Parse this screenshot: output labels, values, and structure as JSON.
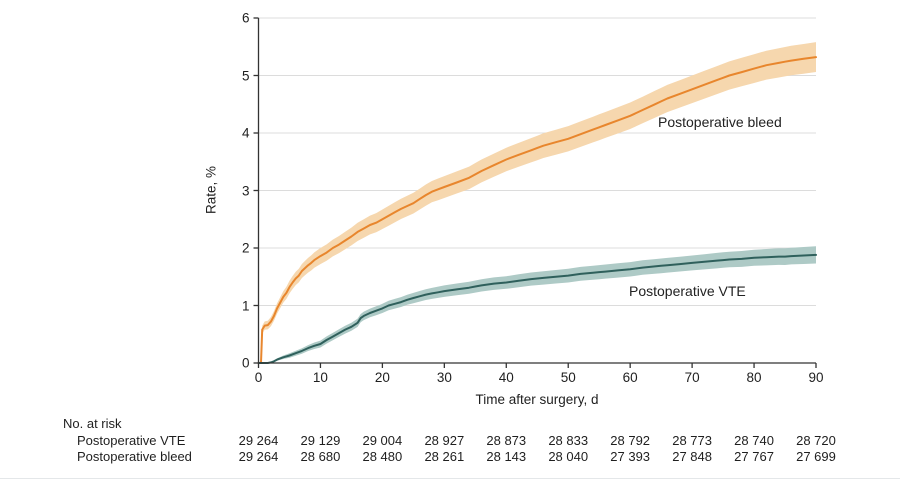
{
  "figure": {
    "y_axis_label": "Rate, %",
    "x_axis_label": "Time after surgery, d",
    "curve_label_bleed": "Postoperative bleed",
    "curve_label_vte": "Postoperative VTE"
  },
  "colors": {
    "bleed_line": "#e8862d",
    "bleed_band": "#f6d7ae",
    "vte_line": "#2f605c",
    "vte_band": "#aecac6",
    "grid": "#dcdcdc",
    "axis": "#333333",
    "text": "#1f1f1f"
  },
  "chart_data": {
    "type": "line",
    "title": "",
    "xlabel": "Time after surgery, d",
    "ylabel": "Rate, %",
    "xlim": [
      0,
      90
    ],
    "ylim": [
      0,
      6
    ],
    "xticks": [
      0,
      10,
      20,
      30,
      40,
      50,
      60,
      70,
      80,
      90
    ],
    "yticks": [
      0,
      1,
      2,
      3,
      4,
      5,
      6
    ],
    "grid": true,
    "legend_position": "inline-annotations",
    "series": [
      {
        "name": "Postoperative bleed",
        "x": [
          0,
          0.4,
          0.6,
          1,
          1.5,
          2,
          2.5,
          3,
          3.5,
          4,
          4.5,
          5,
          5.5,
          6,
          6.5,
          7,
          7.5,
          8,
          8.5,
          9,
          10,
          11,
          12,
          13,
          14,
          15,
          16,
          17,
          18,
          19,
          20,
          21,
          22,
          23,
          24,
          25,
          26,
          27,
          28,
          29,
          30,
          32,
          34,
          35,
          36,
          38,
          40,
          42,
          44,
          45,
          46,
          48,
          50,
          52,
          54,
          55,
          56,
          58,
          60,
          62,
          64,
          65,
          66,
          68,
          70,
          72,
          74,
          75,
          76,
          78,
          80,
          82,
          84,
          85,
          86,
          88,
          90
        ],
        "y": [
          0,
          0,
          0.58,
          0.65,
          0.66,
          0.72,
          0.82,
          0.95,
          1.05,
          1.15,
          1.22,
          1.32,
          1.4,
          1.47,
          1.52,
          1.6,
          1.65,
          1.7,
          1.74,
          1.79,
          1.86,
          1.92,
          2.0,
          2.06,
          2.13,
          2.2,
          2.28,
          2.34,
          2.4,
          2.44,
          2.5,
          2.56,
          2.62,
          2.68,
          2.73,
          2.78,
          2.85,
          2.92,
          2.98,
          3.02,
          3.06,
          3.14,
          3.22,
          3.28,
          3.34,
          3.44,
          3.54,
          3.62,
          3.7,
          3.74,
          3.78,
          3.84,
          3.9,
          3.98,
          4.06,
          4.1,
          4.14,
          4.22,
          4.3,
          4.4,
          4.5,
          4.55,
          4.6,
          4.68,
          4.76,
          4.84,
          4.92,
          4.96,
          5.0,
          5.06,
          5.12,
          5.18,
          5.22,
          5.24,
          5.26,
          5.29,
          5.32
        ],
        "ci_halfwidth_anchors": [
          [
            0,
            0
          ],
          [
            0.6,
            0.07
          ],
          [
            2,
            0.08
          ],
          [
            5,
            0.11
          ],
          [
            10,
            0.14
          ],
          [
            20,
            0.17
          ],
          [
            30,
            0.19
          ],
          [
            50,
            0.22
          ],
          [
            70,
            0.24
          ],
          [
            90,
            0.26
          ]
        ]
      },
      {
        "name": "Postoperative VTE",
        "x": [
          0,
          1.5,
          2,
          2.5,
          3,
          4,
          5,
          6,
          7,
          8,
          9,
          10,
          11,
          12,
          13,
          14,
          15,
          16,
          16.5,
          17,
          18,
          19,
          20,
          21,
          22,
          23,
          24,
          25,
          26,
          27,
          28,
          29,
          30,
          32,
          34,
          35,
          36,
          38,
          40,
          42,
          44,
          45,
          46,
          48,
          50,
          52,
          54,
          55,
          56,
          58,
          60,
          62,
          64,
          65,
          66,
          68,
          70,
          72,
          74,
          75,
          76,
          78,
          80,
          82,
          84,
          85,
          86,
          88,
          90
        ],
        "y": [
          0,
          0,
          0.01,
          0.03,
          0.06,
          0.1,
          0.13,
          0.17,
          0.21,
          0.26,
          0.3,
          0.33,
          0.4,
          0.46,
          0.52,
          0.58,
          0.63,
          0.7,
          0.78,
          0.82,
          0.87,
          0.91,
          0.95,
          1.0,
          1.03,
          1.06,
          1.1,
          1.13,
          1.16,
          1.19,
          1.21,
          1.23,
          1.25,
          1.28,
          1.31,
          1.33,
          1.35,
          1.38,
          1.4,
          1.43,
          1.46,
          1.47,
          1.48,
          1.5,
          1.52,
          1.55,
          1.57,
          1.58,
          1.59,
          1.61,
          1.63,
          1.66,
          1.68,
          1.69,
          1.7,
          1.72,
          1.74,
          1.76,
          1.78,
          1.79,
          1.8,
          1.81,
          1.83,
          1.84,
          1.85,
          1.85,
          1.86,
          1.87,
          1.88
        ],
        "ci_halfwidth_anchors": [
          [
            0,
            0
          ],
          [
            2,
            0.01
          ],
          [
            5,
            0.04
          ],
          [
            10,
            0.06
          ],
          [
            20,
            0.08
          ],
          [
            30,
            0.1
          ],
          [
            50,
            0.12
          ],
          [
            70,
            0.13
          ],
          [
            90,
            0.15
          ]
        ]
      }
    ]
  },
  "risk_table": {
    "header": "No. at risk",
    "columns_days": [
      0,
      10,
      20,
      30,
      40,
      50,
      60,
      70,
      80,
      90
    ],
    "rows": [
      {
        "label": "Postoperative VTE",
        "values": [
          "29 264",
          "29 129",
          "29 004",
          "28 927",
          "28 873",
          "28 833",
          "28 792",
          "28 773",
          "28 740",
          "28 720"
        ]
      },
      {
        "label": "Postoperative bleed",
        "values": [
          "29 264",
          "28 680",
          "28 480",
          "28 261",
          "28 143",
          "28 040",
          "27 393",
          "27 848",
          "27 767",
          "27 699"
        ]
      }
    ]
  }
}
